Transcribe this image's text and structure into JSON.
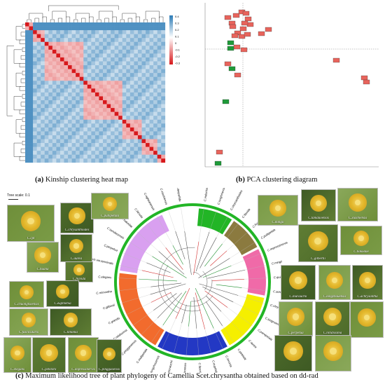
{
  "panel_a": {
    "caption_label": "(a)",
    "caption_text": " Kinship clustering heat map",
    "n": 36,
    "legend_ticks": [
      "0.4",
      "0.3",
      "0.2",
      "0.1",
      "0",
      "-0.1",
      "-0.2",
      "-0.3"
    ],
    "colors": {
      "high": "#d7191c",
      "mid": "#ffffff",
      "low": "#2c7bb6"
    }
  },
  "panel_b": {
    "caption_label": "(b)",
    "caption_text": " PCA clustering diagram",
    "colors": {
      "red": "#e8645c",
      "green": "#1f9a3a"
    }
  },
  "panel_c": {
    "caption_label": "(c)",
    "caption_text": " Maximum likelihood tree of plant phylogeny of Camellia Scet.chrysantha obtained based on dd-rad",
    "tree_scale": "Tree scale: 0.1",
    "clade_colors": [
      "#22b526",
      "#8b7a3f",
      "#f06aa8",
      "#f5ef00",
      "#2338c4",
      "#f26b2d",
      "#d9a0f0"
    ],
    "taxa": [
      "C.indochinensis",
      "C.tunghinensis",
      "C.chrysanthoides",
      "C.flavida",
      "C.huana",
      "C.pubipetala",
      "C.impressinervis",
      "C.mingii",
      "C.quinqueloculosa",
      "C.achrysantha",
      "C.chrysantha",
      "C.longruiensis",
      "C.parvipetala",
      "C.aurea",
      "C.petelotii",
      "C.limonia",
      "C.euphlebia",
      "C.fascicularis",
      "C.chuongtsoensis",
      "C.murauchii",
      "C.longzhouensis",
      "C.multipetala",
      "C.pinggaoensis",
      "C.nitidissima",
      "C.grandis",
      "C.gilbertii",
      "C.micrantha",
      "C.elegans",
      "C.pingguoensis var.terminalis",
      "C.perpetua",
      "C.tamdaoensis",
      "C.hakodae",
      "C.hirsuta",
      "C.ngheanensis",
      "C.xiashiensis",
      "C.luteopallida"
    ],
    "photos": [
      "C.cpl",
      "C.chrysanthoides",
      "C.pubipetala",
      "C.aurea",
      "C.huana",
      "C.flavida",
      "C.chuongtsoensis",
      "C.euphlebia",
      "C.fascicularis",
      "C.limonia",
      "C.elegans",
      "C.petelotii",
      "C.impressinervis",
      "C.pinggaoensis",
      "C.mingii",
      "C.tamdaoensis",
      "C.xiashiensis",
      "C.gilbertii",
      "C.hakodae",
      "C.murauchii",
      "C.longzhouensis",
      "C.achrysantha",
      "C.perpetua",
      "C.nitidissima"
    ]
  }
}
